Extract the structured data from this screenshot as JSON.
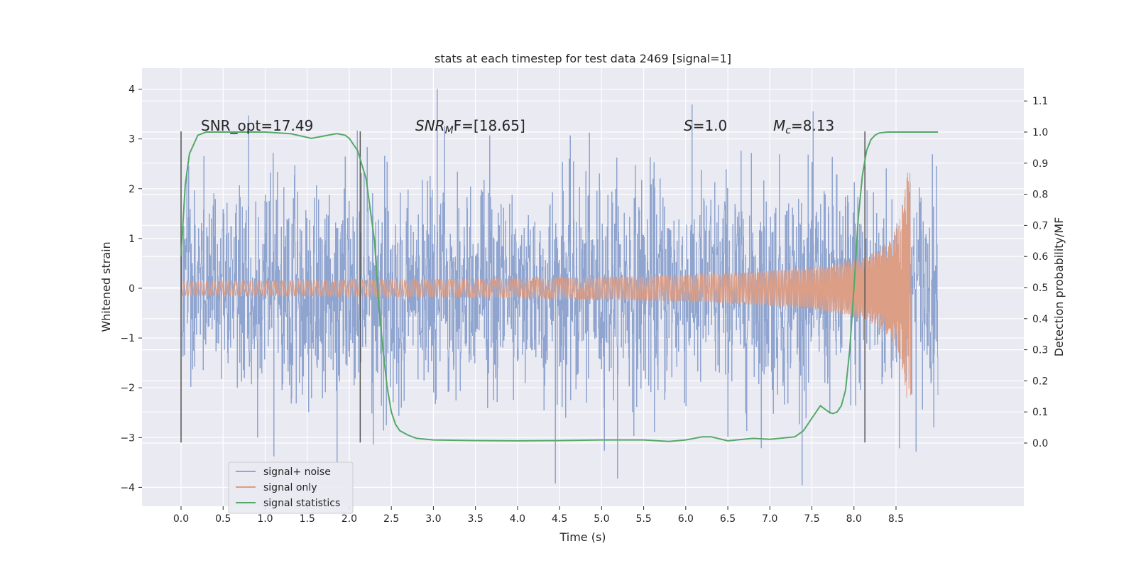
{
  "chart_data": {
    "type": "line",
    "title": "stats at each timestep for test data 2469 [signal=1]",
    "xlabel": "Time (s)",
    "ylabel": "Whitened strain",
    "ylabel_right": "Detection probability/MF",
    "xlim": [
      -0.44,
      9.44
    ],
    "ylim": [
      -4.4,
      4.4
    ],
    "ylim_right": [
      -0.192,
      1.222
    ],
    "x_ticks": [
      "0.0",
      "0.5",
      "1.0",
      "1.5",
      "2.0",
      "2.5",
      "3.0",
      "3.5",
      "4.0",
      "4.5",
      "5.0",
      "5.5",
      "6.0",
      "6.5",
      "7.0",
      "7.5",
      "8.0",
      "8.5"
    ],
    "y_ticks": [
      "4",
      "3",
      "2",
      "1",
      "0",
      "−1",
      "−2",
      "−3",
      "−4"
    ],
    "y_ticks_right": [
      "1.1",
      "1.0",
      "0.9",
      "0.8",
      "0.7",
      "0.6",
      "0.5",
      "0.4",
      "0.3",
      "0.2",
      "0.1",
      "0.0"
    ],
    "grid": true,
    "legend_placement": "lower-left",
    "annotations": [
      {
        "text": "SNR_opt=17.49",
        "x": 0.2,
        "y": 3.15
      },
      {
        "text_main": "SNR",
        "text_sub": "M",
        "text_rest": "F=[18.65]",
        "x": 2.6,
        "y": 3.15
      },
      {
        "text_main": "S",
        "text_rest": "=1.0",
        "x": 5.6,
        "y": 3.15
      },
      {
        "text_main": "M",
        "text_sub": "c",
        "text_rest": "=8.13",
        "x": 6.6,
        "y": 3.15
      }
    ],
    "vertical_markers": [
      0.0,
      2.13,
      8.13
    ],
    "vertical_marker_range": [
      -3.1,
      3.15
    ],
    "series": [
      {
        "name": "signal+ noise",
        "color": "#8fa4cf",
        "x_range": [
          0.0,
          9.0
        ],
        "envelope": {
          "typical": 1.8,
          "peak": 3.5,
          "min": -3.95,
          "max": 4.0
        }
      },
      {
        "name": "signal only",
        "color": "#dd9e86",
        "x_range": [
          0.0,
          8.7
        ],
        "chirp": {
          "merger_time": 8.68,
          "peak_amplitude": 2.35,
          "amplitude_at_5s": 0.07,
          "amplitude_at_7s": 0.28,
          "amplitude_at_8s": 0.58
        }
      },
      {
        "name": "signal statistics",
        "color": "#55a868",
        "axis": "right",
        "x": [
          0.0,
          0.05,
          0.1,
          0.2,
          0.3,
          0.5,
          1.0,
          1.3,
          1.55,
          1.65,
          1.85,
          1.95,
          2.0,
          2.1,
          2.2,
          2.3,
          2.35,
          2.4,
          2.45,
          2.5,
          2.55,
          2.6,
          2.7,
          2.8,
          3.0,
          3.5,
          4.0,
          4.5,
          5.0,
          5.5,
          5.8,
          6.0,
          6.2,
          6.3,
          6.5,
          6.8,
          7.0,
          7.3,
          7.4,
          7.5,
          7.55,
          7.6,
          7.65,
          7.7,
          7.75,
          7.8,
          7.85,
          7.9,
          7.95,
          8.0,
          8.05,
          8.1,
          8.15,
          8.2,
          8.25,
          8.3,
          8.4,
          8.5,
          8.7,
          8.9,
          9.0
        ],
        "y": [
          0.6,
          0.83,
          0.93,
          0.99,
          1.0,
          1.0,
          1.0,
          0.995,
          0.98,
          0.985,
          0.995,
          0.99,
          0.98,
          0.94,
          0.85,
          0.65,
          0.45,
          0.3,
          0.18,
          0.1,
          0.06,
          0.04,
          0.025,
          0.015,
          0.01,
          0.008,
          0.007,
          0.008,
          0.01,
          0.01,
          0.005,
          0.01,
          0.02,
          0.02,
          0.007,
          0.015,
          0.012,
          0.02,
          0.04,
          0.08,
          0.1,
          0.12,
          0.11,
          0.1,
          0.095,
          0.1,
          0.12,
          0.17,
          0.3,
          0.5,
          0.72,
          0.86,
          0.94,
          0.975,
          0.99,
          0.997,
          1.0,
          1.0,
          1.0,
          1.0,
          1.0
        ]
      }
    ]
  }
}
